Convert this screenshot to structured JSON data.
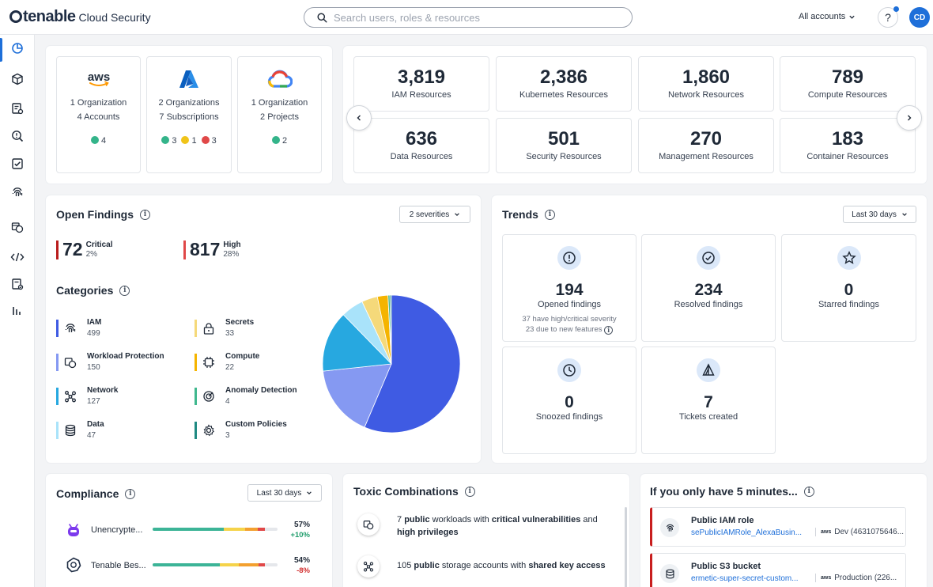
{
  "brand": {
    "name": "tenable",
    "product": "Cloud Security"
  },
  "search": {
    "placeholder": "Search users, roles & resources"
  },
  "header": {
    "accounts_label": "All accounts",
    "help_label": "?",
    "user_initials": "CD"
  },
  "sidebar": {
    "items": [
      {
        "icon": "dashboard-icon",
        "active": true
      },
      {
        "icon": "cube-icon"
      },
      {
        "icon": "inventory-icon"
      },
      {
        "icon": "findings-search-icon"
      },
      {
        "icon": "compliance-check-icon"
      },
      {
        "icon": "fingerprint-icon"
      },
      {
        "icon": "workload-shield-icon"
      },
      {
        "icon": "code-icon"
      },
      {
        "icon": "reports-icon"
      },
      {
        "icon": "analytics-bars-icon"
      }
    ]
  },
  "clouds": [
    {
      "provider": "aws",
      "line1": "1 Organization",
      "line2": "4 Accounts",
      "statuses": [
        {
          "color": "#34b48a",
          "count": "4"
        }
      ]
    },
    {
      "provider": "azure",
      "line1": "2 Organizations",
      "line2": "7 Subscriptions",
      "statuses": [
        {
          "color": "#34b48a",
          "count": "3"
        },
        {
          "color": "#f0c419",
          "count": "1"
        },
        {
          "color": "#e04848",
          "count": "3"
        }
      ]
    },
    {
      "provider": "gcp",
      "line1": "1 Organization",
      "line2": "2 Projects",
      "statuses": [
        {
          "color": "#34b48a",
          "count": "2"
        }
      ]
    }
  ],
  "resources": [
    {
      "value": "3,819",
      "label": "IAM Resources"
    },
    {
      "value": "2,386",
      "label": "Kubernetes Resources"
    },
    {
      "value": "1,860",
      "label": "Network Resources"
    },
    {
      "value": "789",
      "label": "Compute Resources"
    },
    {
      "value": "636",
      "label": "Data Resources"
    },
    {
      "value": "501",
      "label": "Security Resources"
    },
    {
      "value": "270",
      "label": "Management Resources"
    },
    {
      "value": "183",
      "label": "Container Resources"
    }
  ],
  "open_findings": {
    "title": "Open Findings",
    "filter": "2 severities",
    "severities": [
      {
        "count": "72",
        "name": "Critical",
        "pct": "2%",
        "color": "#b91c1c"
      },
      {
        "count": "817",
        "name": "High",
        "pct": "28%",
        "color": "#e04848"
      }
    ],
    "categories_title": "Categories",
    "categories": [
      {
        "name": "IAM",
        "count": "499",
        "color": "#3f5be3",
        "icon": "fingerprint-icon"
      },
      {
        "name": "Secrets",
        "count": "33",
        "color": "#f5d97a",
        "icon": "lock-icon"
      },
      {
        "name": "Workload Protection",
        "count": "150",
        "color": "#8599f2",
        "icon": "workload-icon"
      },
      {
        "name": "Compute",
        "count": "22",
        "color": "#f5b400",
        "icon": "chip-icon"
      },
      {
        "name": "Network",
        "count": "127",
        "color": "#27a8e0",
        "icon": "network-icon"
      },
      {
        "name": "Anomaly Detection",
        "count": "4",
        "color": "#3fb88e",
        "icon": "radar-icon"
      },
      {
        "name": "Data",
        "count": "47",
        "color": "#a9e3fa",
        "icon": "database-icon"
      },
      {
        "name": "Custom Policies",
        "count": "3",
        "color": "#1f8a82",
        "icon": "gear-icon"
      }
    ]
  },
  "chart_data": {
    "type": "pie",
    "categories": [
      "IAM",
      "Workload Protection",
      "Network",
      "Data",
      "Secrets",
      "Compute",
      "Anomaly Detection",
      "Custom Policies"
    ],
    "values": [
      499,
      150,
      127,
      47,
      33,
      22,
      4,
      3
    ],
    "colors": [
      "#3f5be3",
      "#8599f2",
      "#27a8e0",
      "#a9e3fa",
      "#f5d97a",
      "#f5b400",
      "#3fb88e",
      "#1f8a82"
    ]
  },
  "trends": {
    "title": "Trends",
    "filter": "Last 30 days",
    "items": [
      {
        "value": "194",
        "label": "Opened findings",
        "sub1": "37 have high/critical severity",
        "sub2": "23 due to new features",
        "icon": "alert-icon"
      },
      {
        "value": "234",
        "label": "Resolved findings",
        "icon": "check-circle-icon"
      },
      {
        "value": "0",
        "label": "Starred findings",
        "icon": "star-icon"
      },
      {
        "value": "0",
        "label": "Snoozed findings",
        "icon": "clock-icon"
      },
      {
        "value": "7",
        "label": "Tickets created",
        "icon": "ticket-icon"
      }
    ]
  },
  "compliance": {
    "title": "Compliance",
    "filter": "Last 30 days",
    "rows": [
      {
        "name": "Unencrypte...",
        "pct": "57%",
        "delta": "+10%",
        "delta_color": "#1f9d6b",
        "segments": [
          57,
          17,
          10,
          6
        ]
      },
      {
        "name": "Tenable Bes...",
        "pct": "54%",
        "delta": "-8%",
        "delta_color": "#d12c2c",
        "segments": [
          54,
          15,
          16,
          5
        ]
      }
    ]
  },
  "toxic": {
    "title": "Toxic Combinations",
    "items": [
      {
        "p1": "7 ",
        "b1": "public",
        "p2": " workloads with ",
        "b2": "critical vulnerabilities",
        "p3": " and ",
        "b3": "high privileges",
        "icon": "workload-icon"
      },
      {
        "p1": "105 ",
        "b1": "public",
        "p2": " storage accounts with ",
        "b2": "shared key access",
        "p3": "",
        "b3": "",
        "icon": "network-icon"
      }
    ]
  },
  "five": {
    "title": "If you only have 5 minutes...",
    "items": [
      {
        "title": "Public IAM role",
        "link": "sePublicIAMRole_AlexaBusin...",
        "provider": "aws",
        "account": "Dev (4631075646...",
        "icon": "fingerprint-icon"
      },
      {
        "title": "Public S3 bucket",
        "link": "ermetic-super-secret-custom...",
        "provider": "aws",
        "account": "Production (226...",
        "icon": "database-icon"
      }
    ]
  }
}
